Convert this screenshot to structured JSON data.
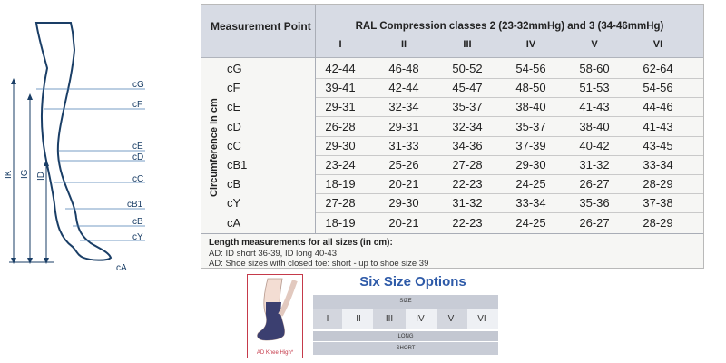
{
  "diagram": {
    "labels": [
      "cG",
      "cF",
      "cE",
      "cD",
      "cC",
      "cB1",
      "cB",
      "cY",
      "cA"
    ],
    "axes": [
      "IK",
      "IG",
      "ID"
    ]
  },
  "table": {
    "measurement_point_header": "Measurement Point",
    "title": "RAL Compression classes 2 (23-32mmHg) and 3 (34-46mmHg)",
    "classes": [
      "I",
      "II",
      "III",
      "IV",
      "V",
      "VI"
    ],
    "side_label": "Circumference in cm",
    "rows": [
      {
        "name": "cG",
        "values": [
          "42-44",
          "46-48",
          "50-52",
          "54-56",
          "58-60",
          "62-64"
        ]
      },
      {
        "name": "cF",
        "values": [
          "39-41",
          "42-44",
          "45-47",
          "48-50",
          "51-53",
          "54-56"
        ]
      },
      {
        "name": "cE",
        "values": [
          "29-31",
          "32-34",
          "35-37",
          "38-40",
          "41-43",
          "44-46"
        ]
      },
      {
        "name": "cD",
        "values": [
          "26-28",
          "29-31",
          "32-34",
          "35-37",
          "38-40",
          "41-43"
        ]
      },
      {
        "name": "cC",
        "values": [
          "29-30",
          "31-33",
          "34-36",
          "37-39",
          "40-42",
          "43-45"
        ]
      },
      {
        "name": "cB1",
        "values": [
          "23-24",
          "25-26",
          "27-28",
          "29-30",
          "31-32",
          "33-34"
        ]
      },
      {
        "name": "cB",
        "values": [
          "18-19",
          "20-21",
          "22-23",
          "24-25",
          "26-27",
          "28-29"
        ]
      },
      {
        "name": "cY",
        "values": [
          "27-28",
          "29-30",
          "31-32",
          "33-34",
          "35-36",
          "37-38"
        ]
      },
      {
        "name": "cA",
        "values": [
          "18-19",
          "20-21",
          "22-23",
          "24-25",
          "26-27",
          "28-29"
        ]
      }
    ],
    "notes_title": "Length measurements for all sizes (in cm):",
    "notes": [
      "AD: ID short 36-39, ID long 40-43",
      "AD: Shoe sizes with closed toe: short - up to shoe size 39"
    ]
  },
  "product": {
    "caption": "AD Knee High*"
  },
  "sizes": {
    "title": "Six Size Options",
    "size_label": "SIZE",
    "options": [
      "I",
      "II",
      "III",
      "IV",
      "V",
      "VI"
    ],
    "long_label": "LONG",
    "short_label": "SHORT"
  }
}
